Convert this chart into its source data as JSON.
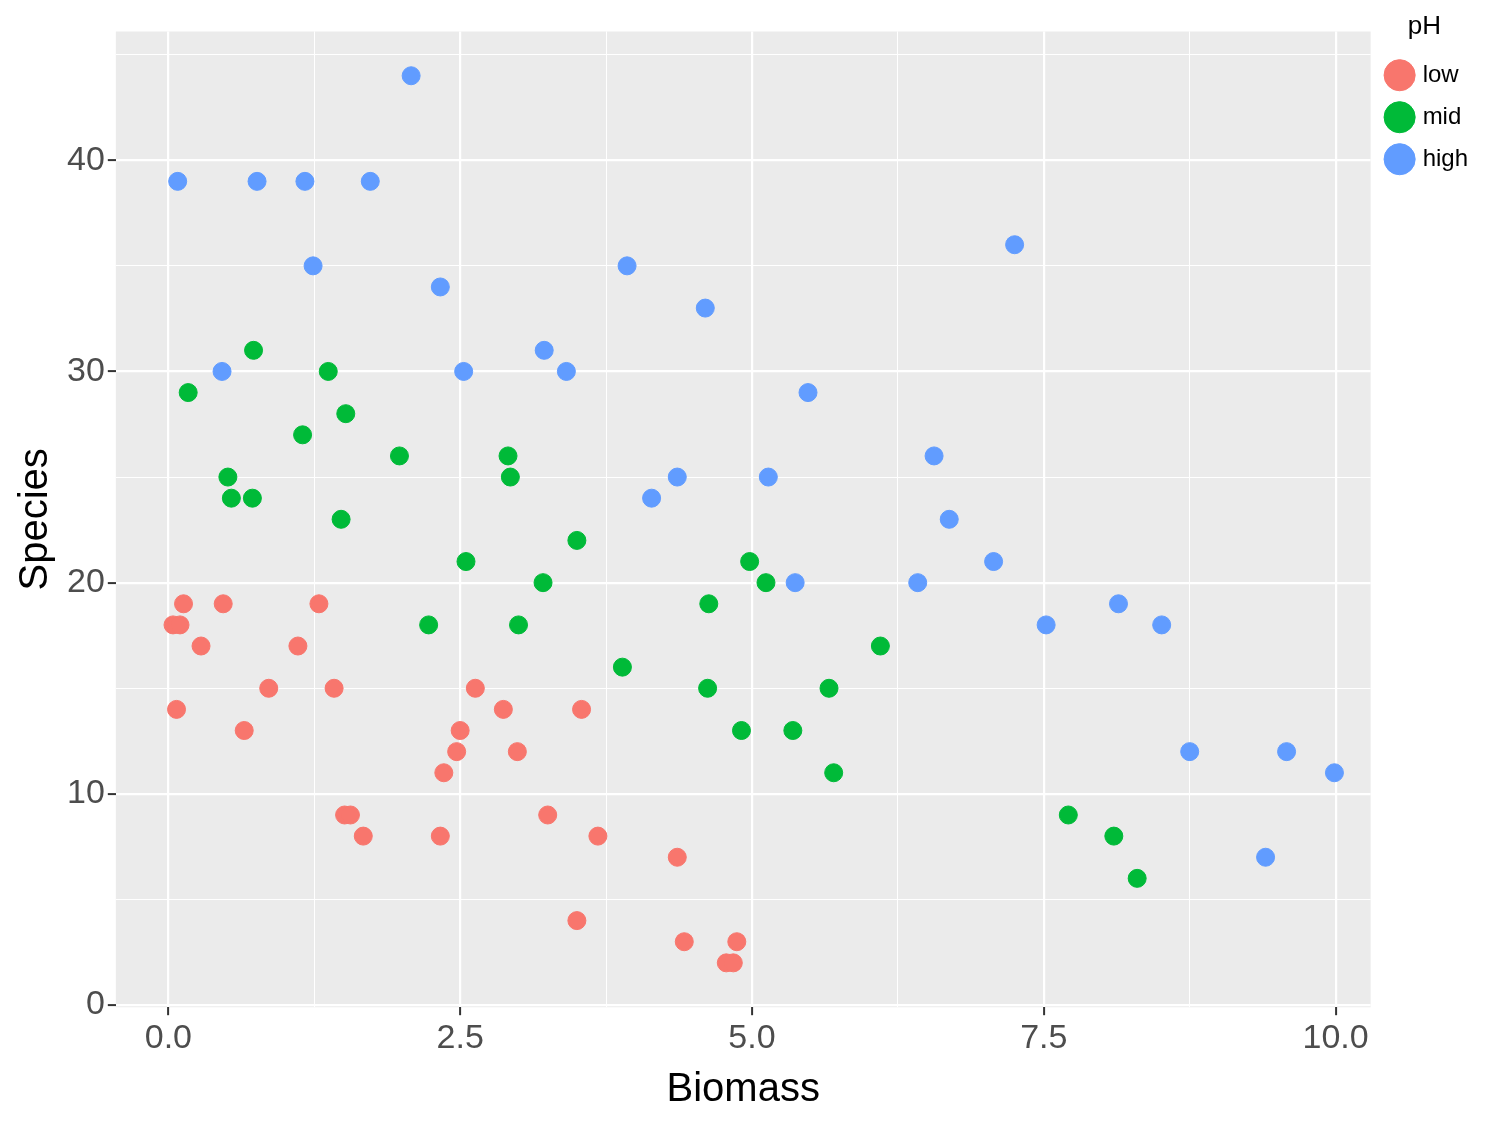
{
  "chart_data": {
    "type": "scatter",
    "xlabel": "Biomass",
    "ylabel": "Species",
    "legend_title": "pH",
    "legend": "top right",
    "grid": true,
    "marker": "circle",
    "xlim": [
      -0.45,
      10.3
    ],
    "ylim": [
      -0.1,
      46.1
    ],
    "xticks": [
      {
        "value": 0,
        "label": "0.0"
      },
      {
        "value": 1.25,
        "label": null
      },
      {
        "value": 2.5,
        "label": "2.5"
      },
      {
        "value": 3.75,
        "label": null
      },
      {
        "value": 5,
        "label": "5.0"
      },
      {
        "value": 6.25,
        "label": null
      },
      {
        "value": 7.5,
        "label": "7.5"
      },
      {
        "value": 8.75,
        "label": null
      },
      {
        "value": 10,
        "label": "10.0"
      }
    ],
    "yticks": [
      0,
      {
        "value": 5,
        "label": null
      },
      10,
      {
        "value": 15,
        "label": null
      },
      20,
      {
        "value": 25,
        "label": null
      },
      30,
      {
        "value": 35,
        "label": null
      },
      40,
      {
        "value": 45,
        "label": null
      }
    ],
    "series": [
      {
        "name": "low",
        "color": "#f8766d",
        "x": [
          0.04,
          0.1,
          0.13,
          0.07,
          0.28,
          0.47,
          0.65,
          0.86,
          1.11,
          1.29,
          1.42,
          1.51,
          1.56,
          1.67,
          2.33,
          2.36,
          2.47,
          2.5,
          2.63,
          2.87,
          2.99,
          3.25,
          3.5,
          3.54,
          3.68,
          4.36,
          4.42,
          4.78,
          4.84,
          4.87
        ],
        "values": [
          18,
          18,
          19,
          14,
          17,
          19,
          13,
          15,
          17,
          19,
          15,
          9,
          9,
          8,
          8,
          11,
          12,
          13,
          15,
          14,
          12,
          9,
          4,
          14,
          8,
          7,
          3,
          2,
          2,
          3
        ]
      },
      {
        "name": "mid",
        "color": "#00ba38",
        "x": [
          0.17,
          0.73,
          1.37,
          1.52,
          1.15,
          0.51,
          0.54,
          0.72,
          1.48,
          1.98,
          2.91,
          2.93,
          3.5,
          2.55,
          3.21,
          2.23,
          3.0,
          3.89,
          4.98,
          5.12,
          4.63,
          4.62,
          4.91,
          5.35,
          5.66,
          5.7,
          6.1,
          7.71,
          8.1,
          8.3
        ],
        "values": [
          29,
          31,
          30,
          28,
          27,
          25,
          24,
          24,
          23,
          26,
          26,
          25,
          22,
          21,
          20,
          18,
          18,
          16,
          21,
          20,
          19,
          15,
          13,
          13,
          15,
          11,
          17,
          9,
          8,
          6
        ]
      },
      {
        "name": "high",
        "color": "#619cff",
        "x": [
          0.08,
          0.76,
          1.17,
          1.73,
          2.08,
          1.24,
          2.33,
          0.46,
          2.53,
          3.22,
          3.41,
          3.93,
          4.6,
          5.48,
          4.14,
          4.36,
          5.14,
          5.37,
          7.25,
          6.56,
          6.69,
          6.42,
          7.07,
          7.52,
          8.14,
          8.51,
          8.75,
          9.58,
          9.99,
          9.4
        ],
        "values": [
          39,
          39,
          39,
          39,
          44,
          35,
          34,
          30,
          30,
          31,
          30,
          35,
          33,
          29,
          24,
          25,
          25,
          20,
          36,
          26,
          23,
          20,
          21,
          18,
          19,
          18,
          12,
          12,
          11,
          7
        ]
      }
    ]
  }
}
